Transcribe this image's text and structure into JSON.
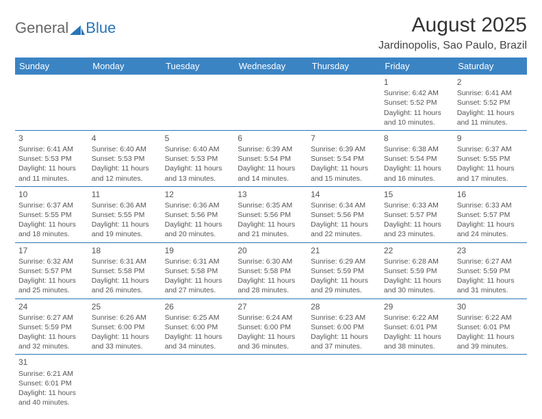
{
  "logo": {
    "text1": "General",
    "text2": "Blue"
  },
  "title": "August 2025",
  "location": "Jardinopolis, Sao Paulo, Brazil",
  "weekdays": [
    "Sunday",
    "Monday",
    "Tuesday",
    "Wednesday",
    "Thursday",
    "Friday",
    "Saturday"
  ],
  "colors": {
    "header_bg": "#3b84c4",
    "header_text": "#ffffff",
    "rule": "#2a74b8",
    "logo_blue": "#2a74b8",
    "text": "#555555"
  },
  "weeks": [
    [
      null,
      null,
      null,
      null,
      null,
      {
        "n": "1",
        "sr": "6:42 AM",
        "ss": "5:52 PM",
        "dl": "11 hours and 10 minutes."
      },
      {
        "n": "2",
        "sr": "6:41 AM",
        "ss": "5:52 PM",
        "dl": "11 hours and 11 minutes."
      }
    ],
    [
      {
        "n": "3",
        "sr": "6:41 AM",
        "ss": "5:53 PM",
        "dl": "11 hours and 11 minutes."
      },
      {
        "n": "4",
        "sr": "6:40 AM",
        "ss": "5:53 PM",
        "dl": "11 hours and 12 minutes."
      },
      {
        "n": "5",
        "sr": "6:40 AM",
        "ss": "5:53 PM",
        "dl": "11 hours and 13 minutes."
      },
      {
        "n": "6",
        "sr": "6:39 AM",
        "ss": "5:54 PM",
        "dl": "11 hours and 14 minutes."
      },
      {
        "n": "7",
        "sr": "6:39 AM",
        "ss": "5:54 PM",
        "dl": "11 hours and 15 minutes."
      },
      {
        "n": "8",
        "sr": "6:38 AM",
        "ss": "5:54 PM",
        "dl": "11 hours and 16 minutes."
      },
      {
        "n": "9",
        "sr": "6:37 AM",
        "ss": "5:55 PM",
        "dl": "11 hours and 17 minutes."
      }
    ],
    [
      {
        "n": "10",
        "sr": "6:37 AM",
        "ss": "5:55 PM",
        "dl": "11 hours and 18 minutes."
      },
      {
        "n": "11",
        "sr": "6:36 AM",
        "ss": "5:55 PM",
        "dl": "11 hours and 19 minutes."
      },
      {
        "n": "12",
        "sr": "6:36 AM",
        "ss": "5:56 PM",
        "dl": "11 hours and 20 minutes."
      },
      {
        "n": "13",
        "sr": "6:35 AM",
        "ss": "5:56 PM",
        "dl": "11 hours and 21 minutes."
      },
      {
        "n": "14",
        "sr": "6:34 AM",
        "ss": "5:56 PM",
        "dl": "11 hours and 22 minutes."
      },
      {
        "n": "15",
        "sr": "6:33 AM",
        "ss": "5:57 PM",
        "dl": "11 hours and 23 minutes."
      },
      {
        "n": "16",
        "sr": "6:33 AM",
        "ss": "5:57 PM",
        "dl": "11 hours and 24 minutes."
      }
    ],
    [
      {
        "n": "17",
        "sr": "6:32 AM",
        "ss": "5:57 PM",
        "dl": "11 hours and 25 minutes."
      },
      {
        "n": "18",
        "sr": "6:31 AM",
        "ss": "5:58 PM",
        "dl": "11 hours and 26 minutes."
      },
      {
        "n": "19",
        "sr": "6:31 AM",
        "ss": "5:58 PM",
        "dl": "11 hours and 27 minutes."
      },
      {
        "n": "20",
        "sr": "6:30 AM",
        "ss": "5:58 PM",
        "dl": "11 hours and 28 minutes."
      },
      {
        "n": "21",
        "sr": "6:29 AM",
        "ss": "5:59 PM",
        "dl": "11 hours and 29 minutes."
      },
      {
        "n": "22",
        "sr": "6:28 AM",
        "ss": "5:59 PM",
        "dl": "11 hours and 30 minutes."
      },
      {
        "n": "23",
        "sr": "6:27 AM",
        "ss": "5:59 PM",
        "dl": "11 hours and 31 minutes."
      }
    ],
    [
      {
        "n": "24",
        "sr": "6:27 AM",
        "ss": "5:59 PM",
        "dl": "11 hours and 32 minutes."
      },
      {
        "n": "25",
        "sr": "6:26 AM",
        "ss": "6:00 PM",
        "dl": "11 hours and 33 minutes."
      },
      {
        "n": "26",
        "sr": "6:25 AM",
        "ss": "6:00 PM",
        "dl": "11 hours and 34 minutes."
      },
      {
        "n": "27",
        "sr": "6:24 AM",
        "ss": "6:00 PM",
        "dl": "11 hours and 36 minutes."
      },
      {
        "n": "28",
        "sr": "6:23 AM",
        "ss": "6:00 PM",
        "dl": "11 hours and 37 minutes."
      },
      {
        "n": "29",
        "sr": "6:22 AM",
        "ss": "6:01 PM",
        "dl": "11 hours and 38 minutes."
      },
      {
        "n": "30",
        "sr": "6:22 AM",
        "ss": "6:01 PM",
        "dl": "11 hours and 39 minutes."
      }
    ],
    [
      {
        "n": "31",
        "sr": "6:21 AM",
        "ss": "6:01 PM",
        "dl": "11 hours and 40 minutes."
      },
      null,
      null,
      null,
      null,
      null,
      null
    ]
  ],
  "labels": {
    "sunrise": "Sunrise:",
    "sunset": "Sunset:",
    "daylight": "Daylight:"
  }
}
